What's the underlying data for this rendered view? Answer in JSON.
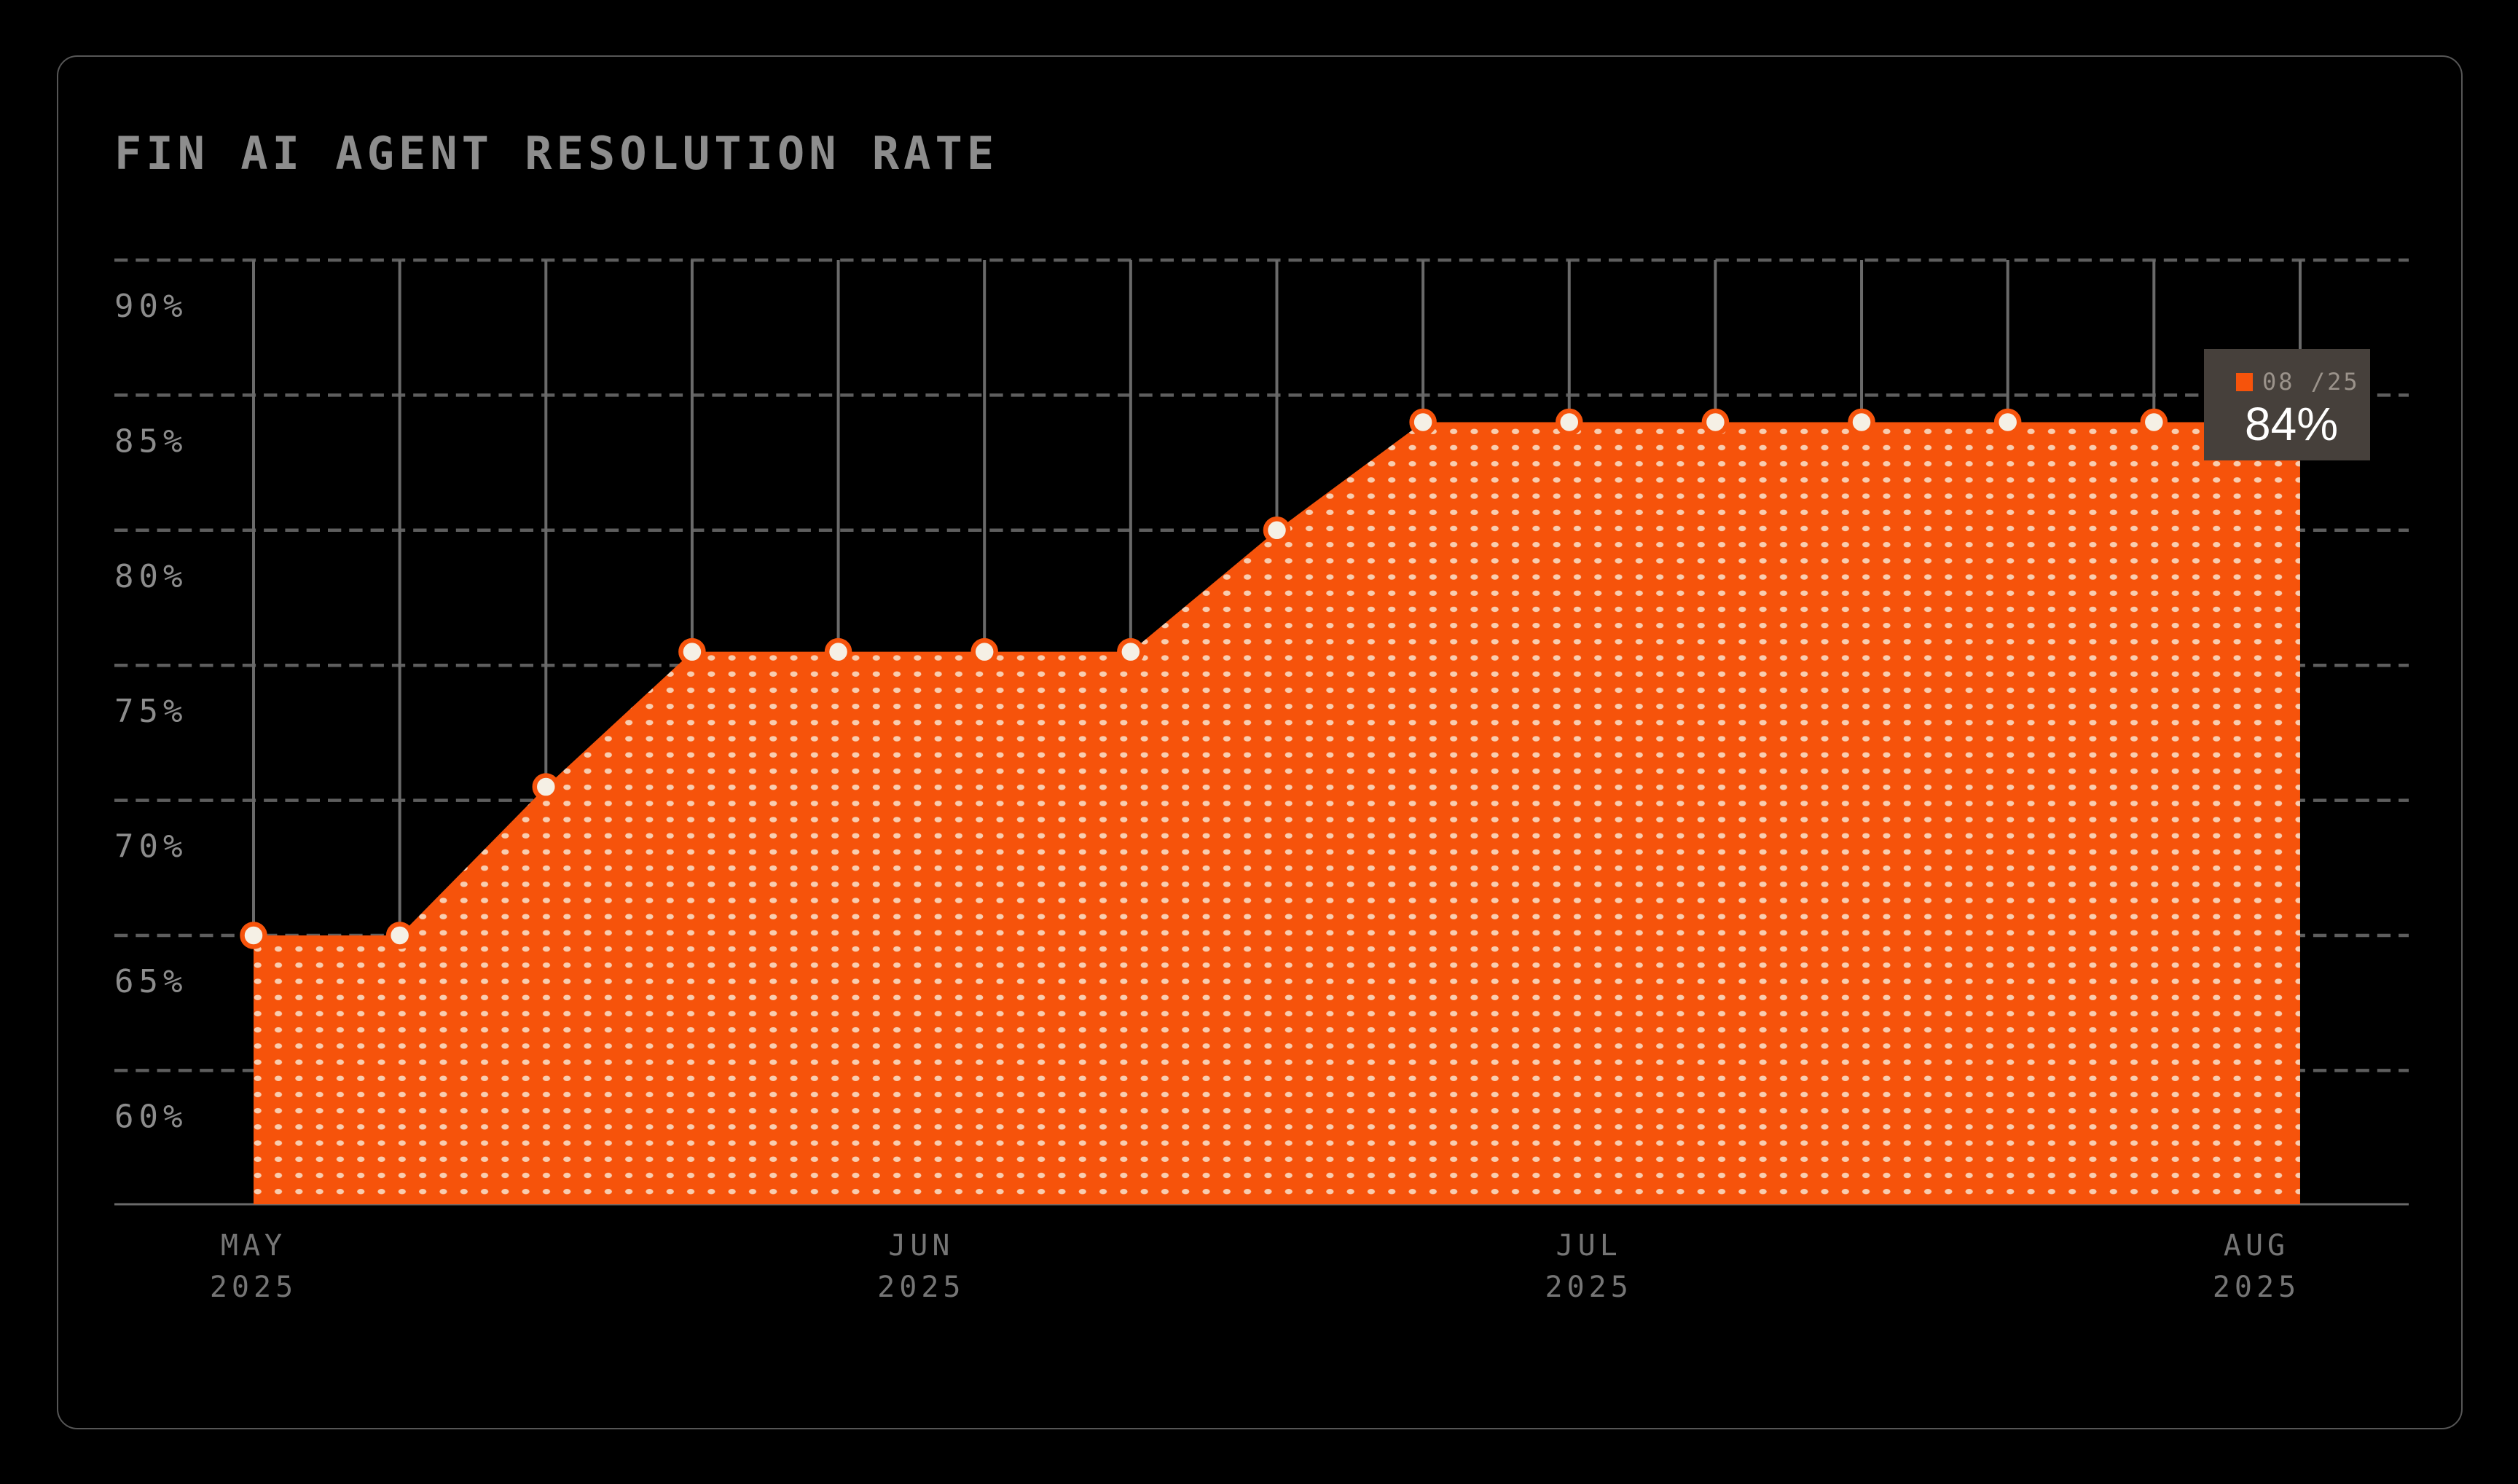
{
  "title": "FIN AI AGENT RESOLUTION RATE",
  "tooltip": {
    "label": "08 /25",
    "value": "84%"
  },
  "colors": {
    "background": "#000000",
    "border": "#565656",
    "accent_orange": "#F6530B",
    "fill_dot": "#F8CDB0",
    "point_fill": "#F5F0E5",
    "gridline": "#5E5E5E",
    "axis_line": "#6A6A6A",
    "dropline": "#6A6A6A",
    "y_label": "#8C8C8C",
    "x_label": "#757575",
    "title_text": "#8D8D8D",
    "tooltip_bg": "#46403B",
    "tooltip_label": "#9B938B",
    "tooltip_value": "#FFFFFF"
  },
  "chart_data": {
    "type": "area",
    "title": "FIN AI AGENT RESOLUTION RATE",
    "x_labels": [
      [
        "MAY",
        "2025"
      ],
      [
        "JUN",
        "2025"
      ],
      [
        "JUL",
        "2025"
      ],
      [
        "AUG",
        "2025"
      ]
    ],
    "y_ticks": [
      "90%",
      "85%",
      "80%",
      "75%",
      "70%",
      "65%",
      "60%"
    ],
    "y_tick_values": [
      90,
      85,
      80,
      75,
      70,
      65,
      60
    ],
    "ylim": [
      55,
      92.5
    ],
    "grid": "dashed-horizontal",
    "legend_position": "tooltip-top-right",
    "series_name": "Fin AI Agent resolution rate",
    "x_description": "15 evenly spaced points, May 2025 through Aug 2025",
    "values": [
      65,
      65,
      70.5,
      75.5,
      75.5,
      75.5,
      75.5,
      80,
      84,
      84,
      84,
      84,
      84,
      84,
      84
    ],
    "tooltip_point_index": 14,
    "tooltip_label": "08 /25",
    "tooltip_value": "84%"
  }
}
